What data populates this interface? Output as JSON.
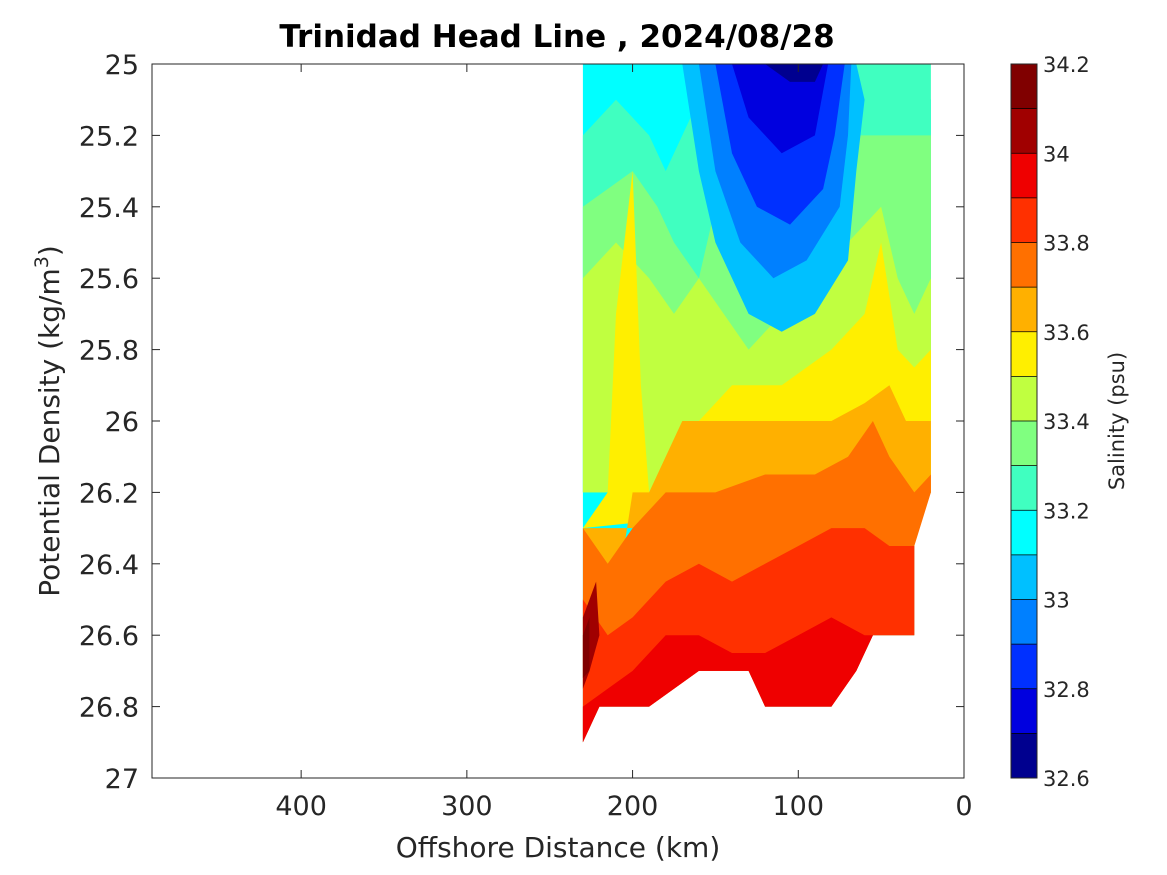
{
  "chart_data": {
    "type": "contour",
    "title": "Trinidad Head Line , 2024/08/28",
    "xlabel": "Offshore Distance (km)",
    "ylabel_main": "Potential Density (kg/m",
    "ylabel_sup": "3",
    "ylabel_close": ")",
    "xlim": [
      490,
      0
    ],
    "x_reversed": true,
    "ylim": [
      25,
      27
    ],
    "y_reversed": true,
    "x_ticks": [
      400,
      300,
      200,
      100,
      0
    ],
    "y_ticks": [
      25,
      25.2,
      25.4,
      25.6,
      25.8,
      26,
      26.2,
      26.4,
      26.6,
      26.8,
      27
    ],
    "y_tick_labels": [
      "25",
      "25.2",
      "25.4",
      "25.6",
      "25.8",
      "26",
      "26.2",
      "26.4",
      "26.6",
      "26.8",
      "27"
    ],
    "colorbar": {
      "label": "Salinity (psu)",
      "min": 32.6,
      "max": 34.2,
      "ticks": [
        34.2,
        34,
        33.8,
        33.6,
        33.4,
        33.2,
        33,
        32.8,
        32.6
      ],
      "tick_labels": [
        "34.2",
        "34",
        "33.8",
        "33.6",
        "33.4",
        "33.2",
        "33",
        "32.8",
        "32.6"
      ],
      "levels": [
        32.6,
        32.7,
        32.8,
        32.9,
        33.0,
        33.1,
        33.2,
        33.3,
        33.4,
        33.5,
        33.6,
        33.7,
        33.8,
        33.9,
        34.0,
        34.1,
        34.2
      ],
      "colors": [
        "#00008f",
        "#0000df",
        "#0030ff",
        "#0080ff",
        "#00c0ff",
        "#00ffff",
        "#40ffc0",
        "#80ff80",
        "#c0ff40",
        "#ffef00",
        "#ffb000",
        "#ff7000",
        "#ff3000",
        "#ef0000",
        "#a00000",
        "#800000"
      ]
    },
    "data_extent": {
      "x_offshore_km": 230,
      "x_nearshore_km": 20,
      "density_top": 25,
      "density_bottom": 26.9
    },
    "salinity_bands": [
      {
        "level_range": [
          32.6,
          32.7
        ],
        "note": "core near 90-100 km at top"
      },
      {
        "level_range": [
          32.7,
          32.8
        ]
      },
      {
        "level_range": [
          32.8,
          32.9
        ]
      },
      {
        "level_range": [
          32.9,
          33.0
        ]
      },
      {
        "level_range": [
          33.0,
          33.1
        ]
      },
      {
        "level_range": [
          33.1,
          33.2
        ]
      },
      {
        "level_range": [
          33.2,
          33.3
        ]
      },
      {
        "level_range": [
          33.3,
          33.4
        ]
      },
      {
        "level_range": [
          33.4,
          33.5
        ]
      },
      {
        "level_range": [
          33.5,
          33.6
        ]
      },
      {
        "level_range": [
          33.6,
          33.7
        ]
      },
      {
        "level_range": [
          33.7,
          33.8
        ]
      },
      {
        "level_range": [
          33.8,
          33.9
        ]
      },
      {
        "level_range": [
          33.9,
          34.0
        ]
      },
      {
        "level_range": [
          34.0,
          34.1
        ]
      },
      {
        "level_range": [
          34.1,
          34.2
        ]
      }
    ]
  }
}
